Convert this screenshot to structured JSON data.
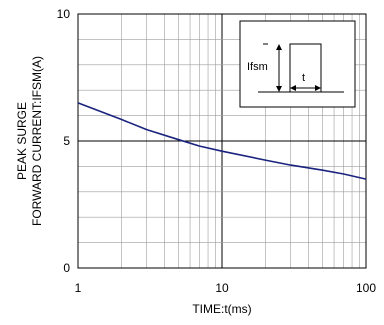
{
  "chart_data": {
    "type": "line",
    "title": "",
    "xlabel": "TIME:t(ms)",
    "ylabel_line1": "PEAK SURGE",
    "ylabel_line2": "FORWARD CURRENT:IFSM(A)",
    "x_scale": "log",
    "xlim": [
      1,
      100
    ],
    "ylim": [
      0,
      10
    ],
    "x_ticks": [
      "1",
      "10",
      "100"
    ],
    "y_ticks": [
      "0",
      "5",
      "10"
    ],
    "grid": true,
    "series": [
      {
        "color": "#1a237e",
        "x": [
          1,
          2,
          3,
          5,
          7,
          10,
          20,
          30,
          50,
          70,
          100
        ],
        "y": [
          6.5,
          5.85,
          5.45,
          5.05,
          4.8,
          4.6,
          4.25,
          4.05,
          3.85,
          3.7,
          3.5
        ]
      }
    ],
    "inset": {
      "label_current": "Ifsm",
      "label_time": "t"
    }
  }
}
